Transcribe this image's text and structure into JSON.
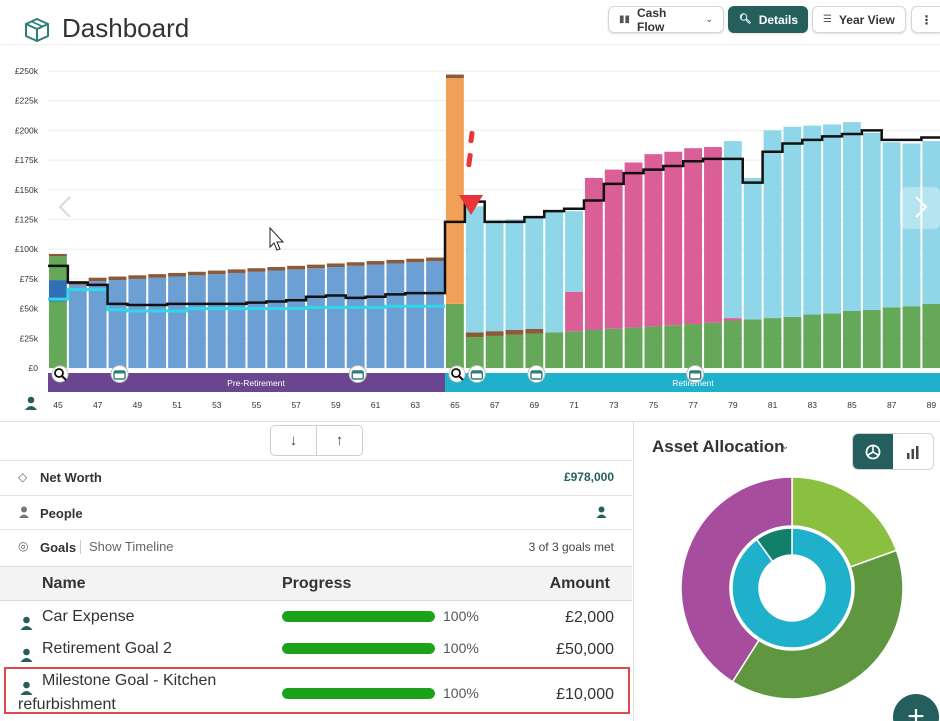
{
  "header": {
    "title": "Dashboard",
    "cashflow_label": "Cash Flow",
    "details_label": "Details",
    "yearview_label": "Year View",
    "more_label": "⋮"
  },
  "colors": {
    "accent": "#255f5d",
    "pre_bar": "#6c9fd4",
    "pre_bar_dark": "#2f6fb5",
    "post_bar": "#8fd6e8",
    "growth_bar": "#66a85a",
    "pink_bar": "#db5f97",
    "orange_bar": "#f0a157",
    "cap": "#8a5a3a",
    "line_black": "#111111",
    "line_cyan": "#33d6e8",
    "pre_phase": "#6a4690",
    "ret_phase": "#1fb1cc",
    "marker_red": "#e8353a"
  },
  "chart_data": {
    "type": "bar",
    "y_ticks": [
      "£250k",
      "£225k",
      "£200k",
      "£175k",
      "£150k",
      "£125k",
      "£100k",
      "£75k",
      "£50k",
      "£25k",
      "£0"
    ],
    "ylim": [
      0,
      250000
    ],
    "x_tick_labels": [
      "45",
      "47",
      "49",
      "51",
      "53",
      "55",
      "57",
      "59",
      "61",
      "63",
      "65",
      "67",
      "69",
      "71",
      "73",
      "75",
      "77",
      "79",
      "81",
      "83",
      "85",
      "87",
      "89"
    ],
    "ages": [
      45,
      46,
      47,
      48,
      49,
      50,
      51,
      52,
      53,
      54,
      55,
      56,
      57,
      58,
      59,
      60,
      61,
      62,
      63,
      64,
      65,
      66,
      67,
      68,
      69,
      70,
      71,
      72,
      73,
      74,
      75,
      76,
      77,
      78,
      79,
      80,
      81,
      82,
      83,
      84,
      85,
      86,
      87,
      88,
      89
    ],
    "stacks": [
      [
        {
          "c": "growth_bar",
          "v": 56000
        },
        {
          "c": "pre_bar_dark",
          "v": 18000
        },
        {
          "c": "growth_bar",
          "v": 20000
        },
        {
          "c": "cap",
          "v": 2000
        }
      ],
      [
        {
          "c": "pre_bar",
          "v": 70000
        },
        {
          "c": "cap",
          "v": 3000
        }
      ],
      [
        {
          "c": "pre_bar",
          "v": 73000
        },
        {
          "c": "cap",
          "v": 3000
        }
      ],
      [
        {
          "c": "pre_bar",
          "v": 74000
        },
        {
          "c": "cap",
          "v": 3000
        }
      ],
      [
        {
          "c": "pre_bar",
          "v": 75000
        },
        {
          "c": "cap",
          "v": 3000
        }
      ],
      [
        {
          "c": "pre_bar",
          "v": 76000
        },
        {
          "c": "cap",
          "v": 3000
        }
      ],
      [
        {
          "c": "pre_bar",
          "v": 77000
        },
        {
          "c": "cap",
          "v": 3000
        }
      ],
      [
        {
          "c": "pre_bar",
          "v": 78000
        },
        {
          "c": "cap",
          "v": 3000
        }
      ],
      [
        {
          "c": "pre_bar",
          "v": 79000
        },
        {
          "c": "cap",
          "v": 3000
        }
      ],
      [
        {
          "c": "pre_bar",
          "v": 80000
        },
        {
          "c": "cap",
          "v": 3000
        }
      ],
      [
        {
          "c": "pre_bar",
          "v": 81000
        },
        {
          "c": "cap",
          "v": 3000
        }
      ],
      [
        {
          "c": "pre_bar",
          "v": 82000
        },
        {
          "c": "cap",
          "v": 3000
        }
      ],
      [
        {
          "c": "pre_bar",
          "v": 83000
        },
        {
          "c": "cap",
          "v": 3000
        }
      ],
      [
        {
          "c": "pre_bar",
          "v": 84000
        },
        {
          "c": "cap",
          "v": 3000
        }
      ],
      [
        {
          "c": "pre_bar",
          "v": 85000
        },
        {
          "c": "cap",
          "v": 3000
        }
      ],
      [
        {
          "c": "pre_bar",
          "v": 86000
        },
        {
          "c": "cap",
          "v": 3000
        }
      ],
      [
        {
          "c": "pre_bar",
          "v": 87000
        },
        {
          "c": "cap",
          "v": 3000
        }
      ],
      [
        {
          "c": "pre_bar",
          "v": 88000
        },
        {
          "c": "cap",
          "v": 3000
        }
      ],
      [
        {
          "c": "pre_bar",
          "v": 89000
        },
        {
          "c": "cap",
          "v": 3000
        }
      ],
      [
        {
          "c": "pre_bar",
          "v": 90000
        },
        {
          "c": "cap",
          "v": 3000
        }
      ],
      [
        {
          "c": "growth_bar",
          "v": 54000
        },
        {
          "c": "orange_bar",
          "v": 190000
        },
        {
          "c": "cap",
          "v": 3000
        }
      ],
      [
        {
          "c": "growth_bar",
          "v": 26000
        },
        {
          "c": "cap",
          "v": 4000
        },
        {
          "c": "post_bar",
          "v": 106000
        }
      ],
      [
        {
          "c": "growth_bar",
          "v": 27000
        },
        {
          "c": "cap",
          "v": 4000
        },
        {
          "c": "post_bar",
          "v": 93000
        }
      ],
      [
        {
          "c": "growth_bar",
          "v": 28000
        },
        {
          "c": "cap",
          "v": 4000
        },
        {
          "c": "post_bar",
          "v": 93000
        }
      ],
      [
        {
          "c": "growth_bar",
          "v": 29000
        },
        {
          "c": "cap",
          "v": 4000
        },
        {
          "c": "post_bar",
          "v": 95000
        }
      ],
      [
        {
          "c": "growth_bar",
          "v": 30000
        },
        {
          "c": "post_bar",
          "v": 102000
        }
      ],
      [
        {
          "c": "growth_bar",
          "v": 31000
        },
        {
          "c": "pink_bar",
          "v": 33000
        },
        {
          "c": "post_bar",
          "v": 68000
        }
      ],
      [
        {
          "c": "growth_bar",
          "v": 32000
        },
        {
          "c": "pink_bar",
          "v": 128000
        }
      ],
      [
        {
          "c": "growth_bar",
          "v": 33000
        },
        {
          "c": "pink_bar",
          "v": 134000
        }
      ],
      [
        {
          "c": "growth_bar",
          "v": 34000
        },
        {
          "c": "pink_bar",
          "v": 139000
        }
      ],
      [
        {
          "c": "growth_bar",
          "v": 35000
        },
        {
          "c": "pink_bar",
          "v": 145000
        }
      ],
      [
        {
          "c": "growth_bar",
          "v": 36000
        },
        {
          "c": "pink_bar",
          "v": 146000
        }
      ],
      [
        {
          "c": "growth_bar",
          "v": 37000
        },
        {
          "c": "pink_bar",
          "v": 148000
        }
      ],
      [
        {
          "c": "growth_bar",
          "v": 38000
        },
        {
          "c": "pink_bar",
          "v": 148000
        }
      ],
      [
        {
          "c": "growth_bar",
          "v": 40000
        },
        {
          "c": "pink_bar",
          "v": 2000
        },
        {
          "c": "post_bar",
          "v": 149000
        }
      ],
      [
        {
          "c": "growth_bar",
          "v": 41000
        },
        {
          "c": "post_bar",
          "v": 119000
        }
      ],
      [
        {
          "c": "growth_bar",
          "v": 42000
        },
        {
          "c": "post_bar",
          "v": 158000
        }
      ],
      [
        {
          "c": "growth_bar",
          "v": 43000
        },
        {
          "c": "post_bar",
          "v": 160000
        }
      ],
      [
        {
          "c": "growth_bar",
          "v": 45000
        },
        {
          "c": "post_bar",
          "v": 159000
        }
      ],
      [
        {
          "c": "growth_bar",
          "v": 46000
        },
        {
          "c": "post_bar",
          "v": 159000
        }
      ],
      [
        {
          "c": "growth_bar",
          "v": 48000
        },
        {
          "c": "post_bar",
          "v": 159000
        }
      ],
      [
        {
          "c": "growth_bar",
          "v": 49000
        },
        {
          "c": "post_bar",
          "v": 149000
        }
      ],
      [
        {
          "c": "growth_bar",
          "v": 51000
        },
        {
          "c": "post_bar",
          "v": 139000
        }
      ],
      [
        {
          "c": "growth_bar",
          "v": 52000
        },
        {
          "c": "post_bar",
          "v": 137000
        }
      ],
      [
        {
          "c": "growth_bar",
          "v": 54000
        },
        {
          "c": "post_bar",
          "v": 137000
        }
      ]
    ],
    "income_line": [
      86000,
      72000,
      70000,
      54000,
      53000,
      53000,
      54000,
      54000,
      54000,
      54000,
      55000,
      56000,
      57000,
      60000,
      61000,
      59000,
      60000,
      62000,
      63000,
      63000,
      123000,
      140000,
      123000,
      123000,
      127000,
      132000,
      134000,
      141000,
      155000,
      164000,
      167000,
      170000,
      174000,
      176000,
      176000,
      156000,
      182000,
      189000,
      192000,
      195000,
      197000,
      200000,
      192000,
      192000,
      194000
    ],
    "cyan_line": [
      58000,
      66000,
      66000,
      49000,
      48000,
      48000,
      48000,
      50000,
      50000,
      50000,
      50000,
      50000,
      50000,
      51000,
      51000,
      51000,
      51000,
      52000,
      52000,
      52000
    ],
    "phases": [
      {
        "label": "Pre-Retirement",
        "from_age": 45,
        "to_age": 65
      },
      {
        "label": "Retirement",
        "from_age": 65,
        "to_age": 89
      }
    ],
    "markers": [
      {
        "type": "zoom",
        "age": 45
      },
      {
        "type": "event",
        "age": 48
      },
      {
        "type": "event",
        "age": 60
      },
      {
        "type": "zoom",
        "age": 65
      },
      {
        "type": "event",
        "age": 66
      },
      {
        "type": "event",
        "age": 69
      },
      {
        "type": "event",
        "age": 77
      }
    ]
  },
  "summary": {
    "net_worth_label": "Net Worth",
    "net_worth_value": "£978,000",
    "people_label": "People",
    "goals_label": "Goals",
    "show_timeline": "Show Timeline",
    "goals_met": "3 of 3 goals met"
  },
  "goals_table": {
    "headers": {
      "name": "Name",
      "progress": "Progress",
      "amount": "Amount"
    },
    "rows": [
      {
        "name": "Car Expense",
        "progress": 1.0,
        "pct": "100%",
        "amount": "£2,000"
      },
      {
        "name": "Retirement Goal 2",
        "progress": 1.0,
        "pct": "100%",
        "amount": "£50,000"
      },
      {
        "name": "Milestone Goal - Kitchen refurbishment",
        "progress": 1.0,
        "pct": "100%",
        "amount": "£10,000"
      }
    ]
  },
  "asset_allocation": {
    "title": "Asset Allocation",
    "outer": [
      {
        "color": "#8abf3f",
        "value": 0.195
      },
      {
        "color": "#5f9640",
        "value": 0.395
      },
      {
        "color": "#a64d9e",
        "value": 0.41
      }
    ],
    "inner": [
      {
        "color": "#1fb1cc",
        "value": 0.9
      },
      {
        "color": "#127f6b",
        "value": 0.1
      }
    ]
  },
  "fab_label": "+"
}
